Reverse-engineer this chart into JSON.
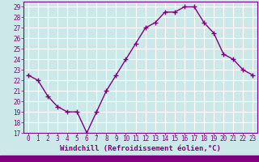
{
  "x": [
    0,
    1,
    2,
    3,
    4,
    5,
    6,
    7,
    8,
    9,
    10,
    11,
    12,
    13,
    14,
    15,
    16,
    17,
    18,
    19,
    20,
    21,
    22,
    23
  ],
  "y": [
    22.5,
    22.0,
    20.5,
    19.5,
    19.0,
    19.0,
    17.0,
    19.0,
    21.0,
    22.5,
    24.0,
    25.5,
    27.0,
    27.5,
    28.5,
    28.5,
    29.0,
    29.0,
    27.5,
    26.5,
    24.5,
    24.0,
    23.0,
    22.5
  ],
  "line_color": "#800080",
  "marker": "+",
  "markersize": 4,
  "linewidth": 1.0,
  "markeredgewidth": 1.0,
  "bg_color": "#cce8e8",
  "grid_color": "#ffffff",
  "xlabel": "Windchill (Refroidissement éolien,°C)",
  "xlabel_fontsize": 6.5,
  "tick_fontsize": 5.5,
  "xlim": [
    -0.5,
    23.5
  ],
  "ylim": [
    17,
    29.5
  ],
  "yticks": [
    17,
    18,
    19,
    20,
    21,
    22,
    23,
    24,
    25,
    26,
    27,
    28,
    29
  ],
  "xticks": [
    0,
    1,
    2,
    3,
    4,
    5,
    6,
    7,
    8,
    9,
    10,
    11,
    12,
    13,
    14,
    15,
    16,
    17,
    18,
    19,
    20,
    21,
    22,
    23
  ],
  "xtick_labels": [
    "0",
    "1",
    "2",
    "3",
    "4",
    "5",
    "6",
    "7",
    "8",
    "9",
    "10",
    "11",
    "12",
    "13",
    "14",
    "15",
    "16",
    "17",
    "18",
    "19",
    "20",
    "21",
    "22",
    "23"
  ],
  "ytick_labels": [
    "17",
    "18",
    "19",
    "20",
    "21",
    "22",
    "23",
    "24",
    "25",
    "26",
    "27",
    "28",
    "29"
  ],
  "axis_color": "#800080",
  "label_color": "#800080",
  "spine_color": "#800080",
  "bottom_bar_color": "#800080"
}
